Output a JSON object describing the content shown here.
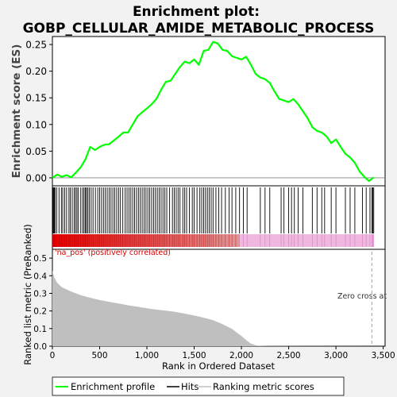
{
  "chart_data": {
    "type": "line",
    "title_line1": "Enrichment plot:",
    "title_line2": "GOBP_CELLULAR_AMIDE_METABOLIC_PROCESS",
    "es_ylabel": "Enrichment score (ES)",
    "es_yticks": [
      "0.00",
      "0.05",
      "0.10",
      "0.15",
      "0.20",
      "0.25"
    ],
    "es_ylim": [
      -0.015,
      0.265
    ],
    "metric_ylabel": "Ranked list metric (PreRanked)",
    "metric_yticks": [
      "0.0",
      "0.1",
      "0.2",
      "0.3",
      "0.4",
      "0.5"
    ],
    "metric_ylim": [
      0,
      0.55
    ],
    "xlabel": "Rank in Ordered Dataset",
    "xticks": [
      "0",
      "500",
      "1,000",
      "1,500",
      "2,000",
      "2,500",
      "3,000",
      "3,500"
    ],
    "xlim": [
      0,
      3520
    ],
    "n_genes": 3400,
    "pos_label": "'na_pos' (positively correlated)",
    "zero_cross_label": "Zero cross at",
    "zero_cross_rank": 3380,
    "legend": [
      "Enrichment profile",
      "Hits",
      "Ranking metric scores"
    ],
    "es_curve": [
      [
        0,
        0.0
      ],
      [
        50,
        0.006
      ],
      [
        100,
        0.002
      ],
      [
        150,
        0.005
      ],
      [
        200,
        0.001
      ],
      [
        250,
        0.01
      ],
      [
        300,
        0.02
      ],
      [
        350,
        0.035
      ],
      [
        400,
        0.058
      ],
      [
        450,
        0.052
      ],
      [
        500,
        0.058
      ],
      [
        550,
        0.062
      ],
      [
        600,
        0.063
      ],
      [
        650,
        0.07
      ],
      [
        700,
        0.077
      ],
      [
        750,
        0.085
      ],
      [
        800,
        0.085
      ],
      [
        850,
        0.1
      ],
      [
        900,
        0.115
      ],
      [
        950,
        0.123
      ],
      [
        1000,
        0.13
      ],
      [
        1050,
        0.138
      ],
      [
        1100,
        0.148
      ],
      [
        1150,
        0.165
      ],
      [
        1200,
        0.18
      ],
      [
        1250,
        0.182
      ],
      [
        1300,
        0.195
      ],
      [
        1350,
        0.208
      ],
      [
        1400,
        0.218
      ],
      [
        1450,
        0.215
      ],
      [
        1500,
        0.222
      ],
      [
        1550,
        0.212
      ],
      [
        1600,
        0.238
      ],
      [
        1650,
        0.24
      ],
      [
        1700,
        0.255
      ],
      [
        1750,
        0.252
      ],
      [
        1800,
        0.24
      ],
      [
        1850,
        0.238
      ],
      [
        1900,
        0.228
      ],
      [
        1950,
        0.225
      ],
      [
        2000,
        0.222
      ],
      [
        2050,
        0.227
      ],
      [
        2100,
        0.212
      ],
      [
        2150,
        0.195
      ],
      [
        2200,
        0.188
      ],
      [
        2250,
        0.185
      ],
      [
        2300,
        0.178
      ],
      [
        2350,
        0.162
      ],
      [
        2400,
        0.148
      ],
      [
        2450,
        0.145
      ],
      [
        2500,
        0.142
      ],
      [
        2550,
        0.148
      ],
      [
        2600,
        0.138
      ],
      [
        2650,
        0.125
      ],
      [
        2700,
        0.112
      ],
      [
        2750,
        0.095
      ],
      [
        2800,
        0.088
      ],
      [
        2850,
        0.085
      ],
      [
        2900,
        0.078
      ],
      [
        2950,
        0.065
      ],
      [
        3000,
        0.072
      ],
      [
        3050,
        0.058
      ],
      [
        3100,
        0.045
      ],
      [
        3150,
        0.038
      ],
      [
        3200,
        0.028
      ],
      [
        3250,
        0.012
      ],
      [
        3300,
        0.002
      ],
      [
        3350,
        -0.006
      ],
      [
        3400,
        0.001
      ]
    ],
    "metric_curve": [
      [
        0,
        0.43
      ],
      [
        20,
        0.39
      ],
      [
        50,
        0.36
      ],
      [
        100,
        0.335
      ],
      [
        200,
        0.31
      ],
      [
        300,
        0.29
      ],
      [
        400,
        0.275
      ],
      [
        500,
        0.262
      ],
      [
        600,
        0.252
      ],
      [
        700,
        0.242
      ],
      [
        800,
        0.232
      ],
      [
        900,
        0.224
      ],
      [
        1000,
        0.215
      ],
      [
        1100,
        0.208
      ],
      [
        1200,
        0.202
      ],
      [
        1300,
        0.195
      ],
      [
        1400,
        0.185
      ],
      [
        1500,
        0.174
      ],
      [
        1600,
        0.162
      ],
      [
        1700,
        0.148
      ],
      [
        1800,
        0.125
      ],
      [
        1900,
        0.098
      ],
      [
        1950,
        0.078
      ],
      [
        2000,
        0.058
      ],
      [
        2050,
        0.035
      ],
      [
        2100,
        0.015
      ],
      [
        2150,
        0.006
      ],
      [
        2200,
        0.002
      ],
      [
        2300,
        0.001
      ],
      [
        3400,
        0.0
      ]
    ],
    "hits": [
      5,
      12,
      20,
      28,
      45,
      70,
      95,
      110,
      130,
      150,
      175,
      190,
      210,
      230,
      245,
      260,
      275,
      300,
      320,
      335,
      350,
      360,
      375,
      390,
      410,
      430,
      455,
      480,
      500,
      520,
      540,
      560,
      580,
      600,
      620,
      640,
      660,
      680,
      700,
      720,
      745,
      770,
      790,
      810,
      830,
      850,
      870,
      890,
      910,
      930,
      950,
      970,
      990,
      1010,
      1030,
      1050,
      1070,
      1090,
      1110,
      1130,
      1150,
      1170,
      1190,
      1210,
      1240,
      1270,
      1290,
      1310,
      1330,
      1350,
      1380,
      1400,
      1420,
      1450,
      1480,
      1500,
      1530,
      1560,
      1580,
      1600,
      1620,
      1640,
      1660,
      1680,
      1700,
      1730,
      1760,
      1790,
      1830,
      1870,
      1900,
      1940,
      1980,
      2020,
      2060,
      2200,
      2250,
      2300,
      2420,
      2450,
      2500,
      2530,
      2560,
      2600,
      2650,
      2750,
      2800,
      2850,
      2880,
      2950,
      3000,
      3100,
      3150,
      3200,
      3280,
      3320,
      3360,
      3380,
      3390,
      3400
    ],
    "colors": {
      "es_line": "#00ff00",
      "hits": "#000000",
      "metric_fill": "#bfbfbf",
      "pos_bar": "#e60000",
      "neg_bar": "#f0b8e0",
      "zero_line": "#808080",
      "pos_text": "#cc0000"
    }
  }
}
